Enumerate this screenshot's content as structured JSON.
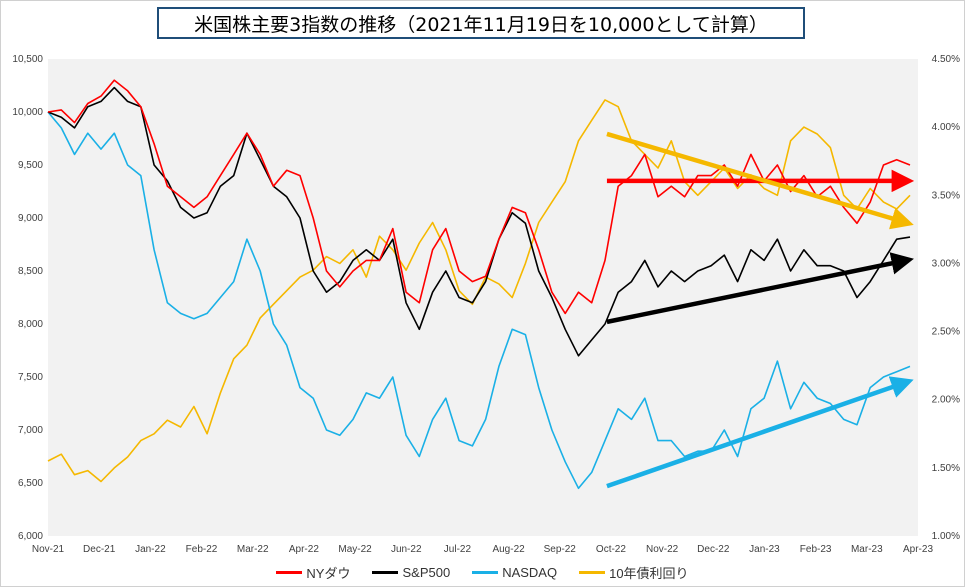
{
  "chart_data": {
    "type": "line",
    "title": "米国株主要3指数の推移（2021年11月19日を10,000として計算）",
    "x_labels": [
      "Nov-21",
      "Dec-21",
      "Jan-22",
      "Feb-22",
      "Mar-22",
      "Apr-22",
      "May-22",
      "Jun-22",
      "Jul-22",
      "Aug-22",
      "Sep-22",
      "Oct-22",
      "Nov-22",
      "Dec-22",
      "Jan-23",
      "Feb-23",
      "Mar-23",
      "Apr-23"
    ],
    "y_left": {
      "ticks": [
        "6,000",
        "6,500",
        "7,000",
        "7,500",
        "8,000",
        "8,500",
        "9,000",
        "9,500",
        "10,000",
        "10,500"
      ],
      "min": 6000,
      "max": 10500
    },
    "y_right": {
      "ticks": [
        "1.00%",
        "1.50%",
        "2.00%",
        "2.50%",
        "3.00%",
        "3.50%",
        "4.00%",
        "4.50%"
      ],
      "min": 1.0,
      "max": 4.5
    },
    "series": [
      {
        "name": "NYダウ",
        "color": "#ff0000",
        "axis": "left",
        "values": [
          10000,
          10020,
          9900,
          10080,
          10150,
          10300,
          10200,
          10050,
          9700,
          9300,
          9200,
          9100,
          9200,
          9400,
          9600,
          9800,
          9600,
          9300,
          9450,
          9400,
          9000,
          8500,
          8350,
          8500,
          8600,
          8600,
          8900,
          8300,
          8200,
          8700,
          8900,
          8500,
          8400,
          8450,
          8800,
          9100,
          9050,
          8700,
          8300,
          8100,
          8300,
          8200,
          8600,
          9300,
          9400,
          9600,
          9200,
          9300,
          9200,
          9400,
          9400,
          9500,
          9300,
          9600,
          9350,
          9500,
          9250,
          9400,
          9200,
          9300,
          9100,
          8950,
          9150,
          9500,
          9550,
          9500
        ]
      },
      {
        "name": "S&P500",
        "color": "#000000",
        "axis": "left",
        "values": [
          10000,
          9950,
          9850,
          10050,
          10100,
          10230,
          10100,
          10050,
          9500,
          9350,
          9100,
          9000,
          9050,
          9300,
          9400,
          9800,
          9550,
          9300,
          9200,
          9000,
          8500,
          8300,
          8400,
          8600,
          8700,
          8600,
          8800,
          8200,
          7950,
          8300,
          8500,
          8250,
          8200,
          8400,
          8800,
          9050,
          8950,
          8500,
          8250,
          7950,
          7700,
          7850,
          8000,
          8300,
          8400,
          8600,
          8350,
          8500,
          8400,
          8500,
          8550,
          8650,
          8400,
          8700,
          8600,
          8800,
          8500,
          8700,
          8550,
          8550,
          8500,
          8250,
          8400,
          8600,
          8800,
          8820
        ]
      },
      {
        "name": "NASDAQ",
        "color": "#1ab0e6",
        "axis": "left",
        "values": [
          10000,
          9850,
          9600,
          9800,
          9650,
          9800,
          9500,
          9400,
          8700,
          8200,
          8100,
          8050,
          8100,
          8250,
          8400,
          8800,
          8500,
          8000,
          7800,
          7400,
          7300,
          7000,
          6950,
          7100,
          7350,
          7300,
          7500,
          6950,
          6750,
          7100,
          7300,
          6900,
          6850,
          7100,
          7600,
          7950,
          7900,
          7400,
          7000,
          6700,
          6450,
          6600,
          6900,
          7200,
          7100,
          7300,
          6900,
          6900,
          6750,
          6800,
          6800,
          7000,
          6750,
          7200,
          7300,
          7650,
          7200,
          7450,
          7300,
          7250,
          7100,
          7050,
          7400,
          7500,
          7550,
          7600
        ]
      },
      {
        "name": "10年債利回り",
        "color": "#f5b800",
        "axis": "right",
        "values": [
          1.55,
          1.6,
          1.45,
          1.48,
          1.4,
          1.5,
          1.58,
          1.7,
          1.75,
          1.85,
          1.8,
          1.95,
          1.75,
          2.05,
          2.3,
          2.4,
          2.6,
          2.7,
          2.8,
          2.9,
          2.95,
          3.05,
          3.0,
          3.1,
          2.9,
          3.2,
          3.1,
          2.95,
          3.15,
          3.3,
          3.1,
          2.8,
          2.7,
          2.9,
          2.85,
          2.75,
          3.0,
          3.3,
          3.45,
          3.6,
          3.9,
          4.05,
          4.2,
          4.15,
          3.9,
          3.8,
          3.7,
          3.9,
          3.6,
          3.5,
          3.6,
          3.7,
          3.55,
          3.65,
          3.55,
          3.5,
          3.9,
          4.0,
          3.95,
          3.85,
          3.5,
          3.4,
          3.55,
          3.45,
          3.4,
          3.5
        ]
      }
    ],
    "trend_arrows": [
      {
        "series": "NYダウ",
        "color": "#ff0000",
        "from": {
          "x": "Oct-22",
          "y": 9350
        },
        "to": {
          "x": "Apr-23",
          "y": 9350
        },
        "axis": "left"
      },
      {
        "series": "S&P500",
        "color": "#000000",
        "from": {
          "x": "Oct-22",
          "y": 8020
        },
        "to": {
          "x": "Apr-23",
          "y": 8600
        },
        "axis": "left"
      },
      {
        "series": "NASDAQ",
        "color": "#1ab0e6",
        "from": {
          "x": "Oct-22",
          "y": 6470
        },
        "to": {
          "x": "Apr-23",
          "y": 7450
        },
        "axis": "left"
      },
      {
        "series": "10年債利回り",
        "color": "#f5b800",
        "from": {
          "x": "Oct-22",
          "y": 3.95
        },
        "to": {
          "x": "Apr-23",
          "y": 3.3
        },
        "axis": "right"
      }
    ],
    "grid": false,
    "legend_position": "bottom"
  }
}
